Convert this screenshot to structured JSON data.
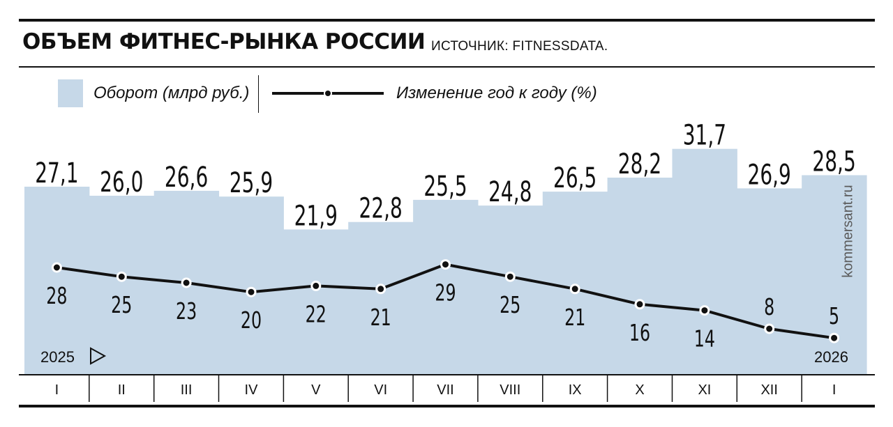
{
  "header": {
    "title": "ОБЪЕМ ФИТНЕС-РЫНКА РОССИИ",
    "source": "ИСТОЧНИК: FITNESSDATA."
  },
  "legend": {
    "bar_label": "Оборот (млрд руб.)",
    "line_label": "Изменение год к году (%)"
  },
  "year_start": "2025",
  "year_end": "2026",
  "watermark": "kommersant.ru",
  "colors": {
    "area": "#c6d8e8",
    "line": "#111111",
    "rules": "#111111"
  },
  "chart_data": {
    "type": "bar",
    "categories": [
      "I",
      "II",
      "III",
      "IV",
      "V",
      "VI",
      "VII",
      "VIII",
      "IX",
      "X",
      "XI",
      "XII",
      "I"
    ],
    "series": [
      {
        "name": "Оборот (млрд руб.)",
        "type": "bar",
        "values": [
          27.1,
          26.0,
          26.6,
          25.9,
          21.9,
          22.8,
          25.5,
          24.8,
          26.5,
          28.2,
          31.7,
          26.9,
          28.5
        ],
        "labels": [
          "27,1",
          "26,0",
          "26,6",
          "25,9",
          "21,9",
          "22,8",
          "25,5",
          "24,8",
          "26,5",
          "28,2",
          "31,7",
          "26,9",
          "28,5"
        ]
      },
      {
        "name": "Изменение год к году (%)",
        "type": "line",
        "values": [
          28,
          25,
          23,
          20,
          22,
          21,
          29,
          25,
          21,
          16,
          14,
          8,
          5
        ],
        "labels": [
          "28",
          "25",
          "23",
          "20",
          "22",
          "21",
          "29",
          "25",
          "21",
          "16",
          "14",
          "8",
          "5"
        ]
      }
    ],
    "grid": false,
    "legend_position": "top-left"
  }
}
